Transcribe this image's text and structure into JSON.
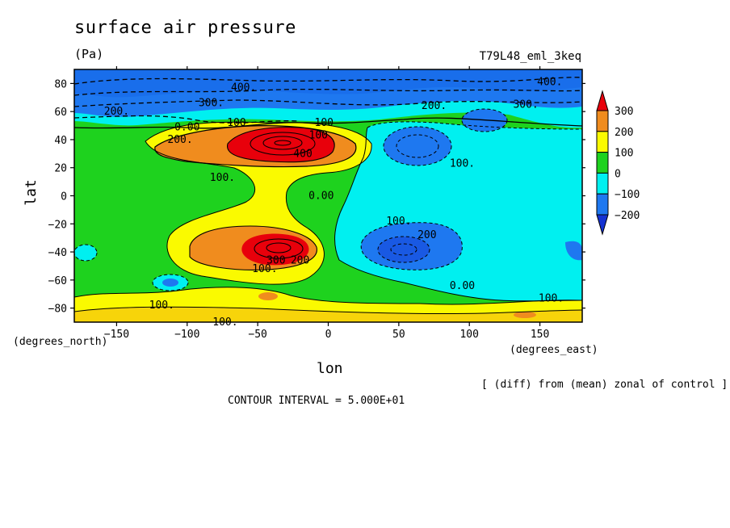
{
  "chart_data": {
    "type": "heatmap",
    "title": "surface air pressure",
    "units": "(Pa)",
    "run_label": "T79L48_eml_3keq",
    "xlabel": "lon",
    "ylabel": "lat",
    "x_unit": "(degrees_east)",
    "y_unit": "(degrees_north)",
    "xlim": [
      -180,
      180
    ],
    "ylim": [
      -90,
      90
    ],
    "x_ticks": [
      -150,
      -100,
      -50,
      0,
      50,
      100,
      150
    ],
    "y_ticks": [
      -80,
      -60,
      -40,
      -20,
      0,
      20,
      40,
      60,
      80
    ],
    "x_tick_labels": [
      "-150",
      "-100",
      "-50",
      "0",
      "50",
      "100",
      "150"
    ],
    "y_tick_labels": [
      "-80",
      "-60",
      "-40",
      "-20",
      "0",
      "20",
      "40",
      "60",
      "80"
    ],
    "colorbar": {
      "levels": [
        300,
        200,
        100,
        0,
        -100,
        -200
      ],
      "labels": [
        "300",
        "200",
        "100",
        "0",
        "−100",
        "−200"
      ],
      "colors": [
        "#e8000b",
        "#f08c1e",
        "#fafa00",
        "#1ed21e",
        "#00f0f0",
        "#1e78f0",
        "#1432d2"
      ]
    },
    "contour_interval": 50,
    "contour_labels": [
      {
        "text": "400.",
        "lon": -60,
        "lat": 77
      },
      {
        "text": "300.",
        "lon": -83,
        "lat": 66
      },
      {
        "text": "200.",
        "lon": -150,
        "lat": 60
      },
      {
        "text": "100",
        "lon": -65,
        "lat": 52
      },
      {
        "text": "0.00",
        "lon": -100,
        "lat": 49
      },
      {
        "text": "200.",
        "lon": -105,
        "lat": 40
      },
      {
        "text": "100",
        "lon": -3,
        "lat": 52
      },
      {
        "text": "100",
        "lon": -7,
        "lat": 43
      },
      {
        "text": "400",
        "lon": -18,
        "lat": 30
      },
      {
        "text": "100.",
        "lon": -75,
        "lat": 13
      },
      {
        "text": "0.00",
        "lon": -5,
        "lat": 0
      },
      {
        "text": "200.",
        "lon": 75,
        "lat": 64
      },
      {
        "text": "300.",
        "lon": 140,
        "lat": 65
      },
      {
        "text": "400.",
        "lon": 157,
        "lat": 81
      },
      {
        "text": "100.",
        "lon": 95,
        "lat": 23
      },
      {
        "text": "100.",
        "lon": 50,
        "lat": -18
      },
      {
        "text": "200",
        "lon": 70,
        "lat": -28
      },
      {
        "text": "300",
        "lon": -37,
        "lat": -46
      },
      {
        "text": "200",
        "lon": -20,
        "lat": -46
      },
      {
        "text": "100.",
        "lon": -45,
        "lat": -52
      },
      {
        "text": "0.00",
        "lon": 95,
        "lat": -64
      },
      {
        "text": "100.",
        "lon": -118,
        "lat": -78
      },
      {
        "text": "100.",
        "lon": -73,
        "lat": -90
      },
      {
        "text": "100.",
        "lon": 158,
        "lat": -73
      }
    ]
  },
  "footnote": "[ (diff) from (mean) zonal of control ]",
  "contour_interval_text": "CONTOUR INTERVAL = 5.000E+01"
}
